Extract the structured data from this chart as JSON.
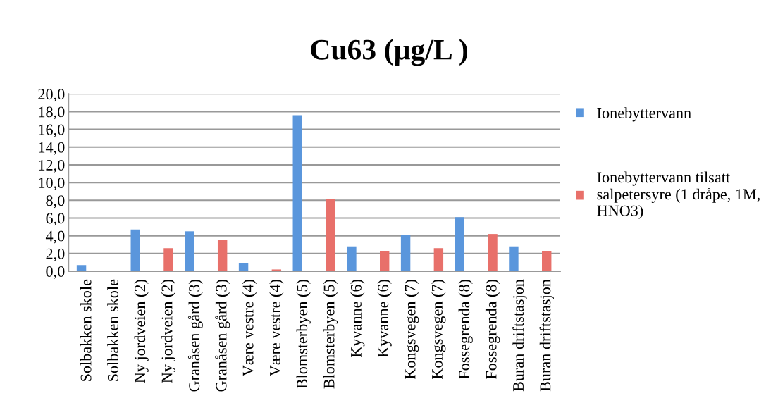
{
  "chart_data": {
    "type": "bar",
    "title": "Cu63 (µg/L )",
    "categories": [
      "Solbakken skole",
      "Solbakken skole",
      "Ny jordveien (2)",
      "Ny jordveien (2)",
      "Granåsen gård (3)",
      "Granåsen gård (3)",
      "Være vestre (4)",
      "Være vestre (4)",
      "Blomsterbyen (5)",
      "Blomsterbyen (5)",
      "Kyvanne (6)",
      "Kyvanne (6)",
      "Kongsvegen (7)",
      "Kongsvegen (7)",
      "Fossegrenda (8)",
      "Fossegrenda (8)",
      "Buran driftstasjon",
      "Buran driftstasjon"
    ],
    "series": [
      {
        "name": "Ionebyttervann",
        "color": "#5a96dc",
        "values": [
          0.7,
          null,
          4.7,
          null,
          4.5,
          null,
          0.9,
          null,
          17.6,
          null,
          2.8,
          null,
          4.1,
          null,
          6.1,
          null,
          2.8,
          null
        ]
      },
      {
        "name": "Ionebyttervann tilsatt\nsalpetersyre (1 dråpe, 1M,\nHNO3)",
        "color": "#e8706a",
        "values": [
          null,
          0,
          null,
          2.6,
          null,
          3.5,
          null,
          0.2,
          null,
          8.1,
          null,
          2.3,
          null,
          2.6,
          null,
          4.2,
          null,
          2.3
        ]
      }
    ],
    "ylim": [
      0,
      20
    ],
    "yticks": [
      {
        "value": 0,
        "label": "0,0"
      },
      {
        "value": 2,
        "label": "2,0"
      },
      {
        "value": 4,
        "label": "4,0"
      },
      {
        "value": 6,
        "label": "6,0"
      },
      {
        "value": 8,
        "label": "8,0"
      },
      {
        "value": 10,
        "label": "10,0"
      },
      {
        "value": 12,
        "label": "12,0"
      },
      {
        "value": 14,
        "label": "14,0"
      },
      {
        "value": 16,
        "label": "16,0"
      },
      {
        "value": 18,
        "label": "18,0"
      },
      {
        "value": 20,
        "label": "20,0"
      }
    ],
    "grid": "y",
    "legend": "right"
  }
}
